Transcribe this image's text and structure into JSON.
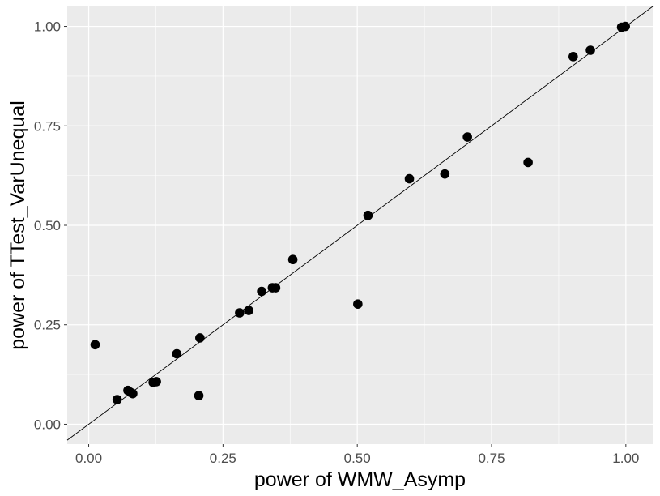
{
  "chart_data": {
    "type": "scatter",
    "title": "",
    "xlabel": "power of WMW_Asymp",
    "ylabel": "power of TTest_VarUnequal",
    "xlim": [
      -0.04,
      1.05
    ],
    "ylim": [
      -0.05,
      1.05
    ],
    "x_ticks": [
      0.0,
      0.25,
      0.5,
      0.75,
      1.0
    ],
    "x_tick_labels": [
      "0.00",
      "0.25",
      "0.50",
      "0.75",
      "1.00"
    ],
    "y_ticks": [
      0.0,
      0.25,
      0.5,
      0.75,
      1.0
    ],
    "y_tick_labels": [
      "0.00",
      "0.25",
      "0.50",
      "0.75",
      "1.00"
    ],
    "grid": true,
    "reference_line": {
      "slope": 1,
      "intercept": 0
    },
    "points": [
      {
        "x": 0.012,
        "y": 0.2
      },
      {
        "x": 0.053,
        "y": 0.062
      },
      {
        "x": 0.073,
        "y": 0.085
      },
      {
        "x": 0.078,
        "y": 0.08
      },
      {
        "x": 0.082,
        "y": 0.077
      },
      {
        "x": 0.12,
        "y": 0.105
      },
      {
        "x": 0.126,
        "y": 0.107
      },
      {
        "x": 0.164,
        "y": 0.177
      },
      {
        "x": 0.205,
        "y": 0.072
      },
      {
        "x": 0.207,
        "y": 0.217
      },
      {
        "x": 0.281,
        "y": 0.28
      },
      {
        "x": 0.298,
        "y": 0.286
      },
      {
        "x": 0.322,
        "y": 0.334
      },
      {
        "x": 0.342,
        "y": 0.343
      },
      {
        "x": 0.348,
        "y": 0.343
      },
      {
        "x": 0.38,
        "y": 0.414
      },
      {
        "x": 0.501,
        "y": 0.302
      },
      {
        "x": 0.52,
        "y": 0.525
      },
      {
        "x": 0.597,
        "y": 0.617
      },
      {
        "x": 0.663,
        "y": 0.629
      },
      {
        "x": 0.705,
        "y": 0.722
      },
      {
        "x": 0.818,
        "y": 0.658
      },
      {
        "x": 0.902,
        "y": 0.924
      },
      {
        "x": 0.934,
        "y": 0.94
      },
      {
        "x": 0.992,
        "y": 0.998
      },
      {
        "x": 0.999,
        "y": 1.0
      }
    ],
    "colors": {
      "panel_background": "#ebebeb",
      "grid_major": "#ffffff",
      "point": "#000000",
      "line": "#000000",
      "tick_text": "#4d4d4d"
    }
  }
}
